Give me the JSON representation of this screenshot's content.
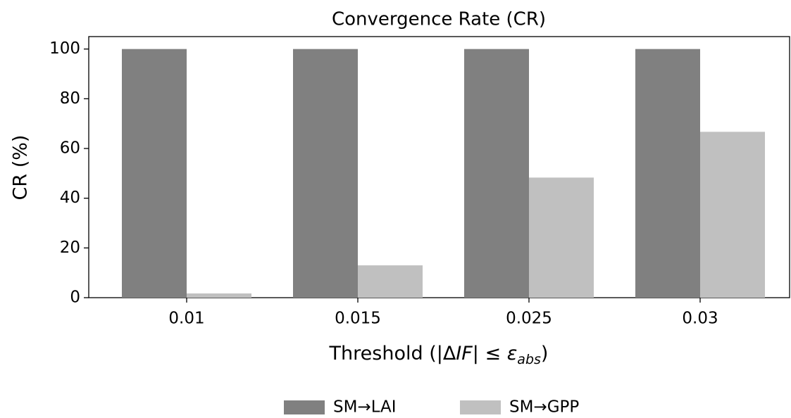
{
  "chart_data": {
    "type": "bar",
    "title": "Convergence Rate (CR)",
    "y_label": "CR (%)",
    "x_label": [
      "Threshold (|Δ",
      "IF",
      "| ≤ ",
      "ε",
      "abs",
      ")"
    ],
    "categories": [
      "0.01",
      "0.015",
      "0.025",
      "0.03"
    ],
    "series": [
      {
        "name": "SM→LAI",
        "color": "#808080",
        "values": [
          100,
          100,
          100,
          100
        ]
      },
      {
        "name": "SM→GPP",
        "color": "#c0c0c0",
        "values": [
          1.7,
          13,
          48.3,
          66.7
        ]
      }
    ],
    "ylim": [
      0,
      105
    ],
    "yticks": [
      0,
      20,
      40,
      60,
      80,
      100
    ],
    "legend": "bottom"
  }
}
